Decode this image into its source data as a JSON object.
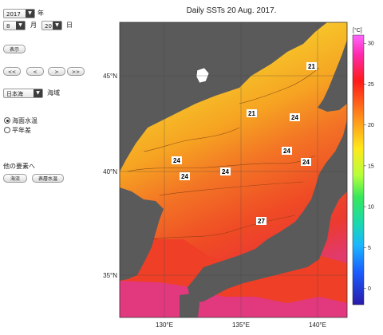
{
  "controls": {
    "year_value": "2017",
    "year_unit": "年",
    "month_value": "8",
    "month_unit": "月",
    "day_value": "20",
    "day_unit": "日",
    "show_button": "表示",
    "nav_buttons": [
      "<<",
      "<",
      ">",
      ">>"
    ],
    "sea_area_value": "日本海",
    "sea_area_label": "海域",
    "radio_sst": "海面水温",
    "radio_anomaly": "平年差",
    "other_elements_label": "他の要素へ",
    "current_button": "海流",
    "surface_temp_button": "表層水温"
  },
  "map": {
    "title": "Daily SSTs 20 Aug. 2017.",
    "lat_labels": [
      "45°N",
      "40°N",
      "35°N"
    ],
    "lon_labels": [
      "130°E",
      "135°E",
      "140°E"
    ],
    "contour_labels": [
      "21",
      "21",
      "24",
      "24",
      "24",
      "24",
      "24",
      "24",
      "27"
    ],
    "colorbar": {
      "unit": "[°C]",
      "ticks": [
        "30",
        "25",
        "20",
        "15",
        "10",
        "5",
        "0"
      ],
      "min": -2,
      "max": 31
    },
    "colors": {
      "land": "#5a5a5a",
      "warm": "#f03a25",
      "mid": "#f8a020",
      "cool": "#f5e23a",
      "hot": "#e0348a"
    }
  }
}
